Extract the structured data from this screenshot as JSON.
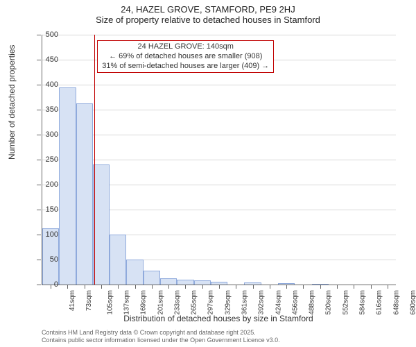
{
  "header": {
    "title_line1": "24, HAZEL GROVE, STAMFORD, PE9 2HJ",
    "title_line2": "Size of property relative to detached houses in Stamford"
  },
  "chart": {
    "type": "histogram",
    "ylabel": "Number of detached properties",
    "xlabel": "Distribution of detached houses by size in Stamford",
    "ylim": [
      0,
      500
    ],
    "ytick_step": 50,
    "background_color": "#ffffff",
    "grid_color": "#d8d8d8",
    "axis_color": "#666666",
    "bar_fill": "#d7e2f4",
    "bar_stroke": "#8faadc",
    "marker_color": "#c00000",
    "marker_x_index": 3.1,
    "xtick_labels": [
      "41sqm",
      "73sqm",
      "105sqm",
      "137sqm",
      "169sqm",
      "201sqm",
      "233sqm",
      "265sqm",
      "297sqm",
      "329sqm",
      "361sqm",
      "392sqm",
      "424sqm",
      "456sqm",
      "488sqm",
      "520sqm",
      "552sqm",
      "584sqm",
      "616sqm",
      "648sqm",
      "680sqm"
    ],
    "values": [
      112,
      394,
      363,
      240,
      100,
      50,
      28,
      12,
      10,
      8,
      6,
      0,
      4,
      0,
      3,
      0,
      2,
      0,
      0,
      0,
      0
    ],
    "label_fontsize": 11,
    "title_fontsize": 13
  },
  "annotation": {
    "line1": "24 HAZEL GROVE: 140sqm",
    "line2": "← 69% of detached houses are smaller (908)",
    "line3": "31% of semi-detached houses are larger (409) →",
    "border_color": "#c00000"
  },
  "footer": {
    "line1": "Contains HM Land Registry data © Crown copyright and database right 2025.",
    "line2": "Contains public sector information licensed under the Open Government Licence v3.0."
  }
}
